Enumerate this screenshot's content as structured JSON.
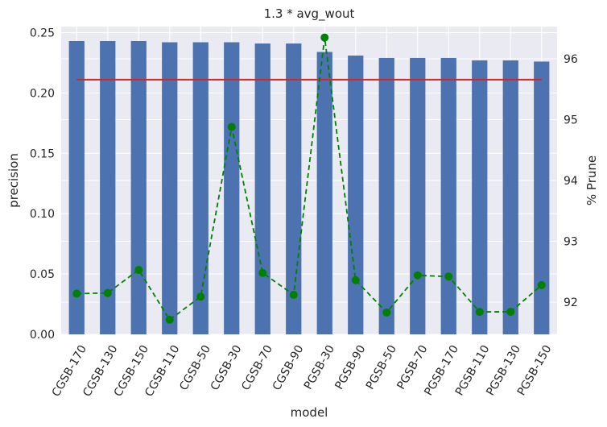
{
  "chart_data": {
    "type": "bar",
    "title": "1.3 * avg_wout",
    "xlabel": "model",
    "ylabel": "precision",
    "y2label": "% Prune",
    "categories": [
      "CGSB-170",
      "CGSB-130",
      "CGSB-150",
      "CGSB-110",
      "CGSB-50",
      "CGSB-30",
      "CGSB-70",
      "CGSB-90",
      "PGSB-30",
      "PGSB-90",
      "PGSB-50",
      "PGSB-70",
      "PGSB-170",
      "PGSB-110",
      "PGSB-130",
      "PGSB-150"
    ],
    "ylim": [
      0,
      0.255
    ],
    "y_ticks": [
      "0.00",
      "0.05",
      "0.10",
      "0.15",
      "0.20",
      "0.25"
    ],
    "y2lim": [
      91.47,
      96.53
    ],
    "y2_ticks": [
      "92",
      "93",
      "94",
      "95",
      "96"
    ],
    "grid": true,
    "series": [
      {
        "kind": "bar",
        "axis": "left",
        "color": "#4c72b0",
        "values": [
          0.243,
          0.243,
          0.243,
          0.242,
          0.242,
          0.242,
          0.241,
          0.241,
          0.234,
          0.231,
          0.229,
          0.229,
          0.229,
          0.227,
          0.227,
          0.226
        ]
      },
      {
        "kind": "hline",
        "axis": "left",
        "color": "#d62728",
        "value": 0.211
      },
      {
        "kind": "line",
        "axis": "right",
        "style": "dashed",
        "marker": "circle",
        "color": "#008000",
        "values": [
          92.14,
          92.15,
          92.53,
          91.71,
          92.09,
          94.88,
          92.48,
          92.12,
          96.35,
          92.36,
          91.83,
          92.44,
          92.42,
          91.84,
          91.84,
          92.28
        ]
      }
    ]
  }
}
